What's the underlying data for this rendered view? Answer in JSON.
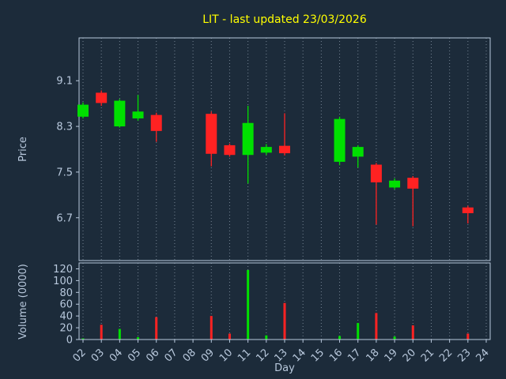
{
  "title": "LIT - last updated 23/03/2026",
  "colors": {
    "background": "#1c2b3a",
    "axis": "#b8c8dc",
    "title": "#ffff00",
    "grid": "#93a1b1",
    "up": "#00e000",
    "down": "#ff2222"
  },
  "chart_data": {
    "type": "candlestick",
    "title": "LIT - last updated 23/03/2026",
    "xlabel": "Day",
    "price_ylabel": "Price",
    "volume_ylabel": "Volume (0000)",
    "x_ticks": [
      2,
      3,
      4,
      5,
      6,
      7,
      8,
      9,
      10,
      11,
      12,
      13,
      14,
      15,
      16,
      17,
      18,
      19,
      20,
      21,
      22,
      23,
      24
    ],
    "price_yticks": [
      6.7,
      7.5,
      8.3,
      9.1
    ],
    "price_ylim": [
      5.95,
      9.85
    ],
    "volume_yticks": [
      0,
      20,
      40,
      60,
      80,
      100,
      120
    ],
    "volume_ylim": [
      0,
      130
    ],
    "legend": "none",
    "grid": "vertical-dotted",
    "candles": [
      {
        "day": 2,
        "open": 8.47,
        "high": 8.72,
        "low": 8.44,
        "close": 8.68,
        "volume": 2
      },
      {
        "day": 3,
        "open": 8.89,
        "high": 8.93,
        "low": 8.66,
        "close": 8.71,
        "volume": 25
      },
      {
        "day": 4,
        "open": 8.3,
        "high": 8.78,
        "low": 8.28,
        "close": 8.75,
        "volume": 18
      },
      {
        "day": 5,
        "open": 8.44,
        "high": 8.85,
        "low": 8.4,
        "close": 8.56,
        "volume": 4
      },
      {
        "day": 6,
        "open": 8.5,
        "high": 8.54,
        "low": 8.03,
        "close": 8.22,
        "volume": 38
      },
      {
        "day": 9,
        "open": 8.52,
        "high": 8.56,
        "low": 7.6,
        "close": 7.82,
        "volume": 40
      },
      {
        "day": 10,
        "open": 7.97,
        "high": 8.0,
        "low": 7.77,
        "close": 7.8,
        "volume": 10
      },
      {
        "day": 11,
        "open": 7.8,
        "high": 8.66,
        "low": 7.3,
        "close": 8.36,
        "volume": 118
      },
      {
        "day": 12,
        "open": 7.84,
        "high": 7.99,
        "low": 7.8,
        "close": 7.94,
        "volume": 7
      },
      {
        "day": 13,
        "open": 7.96,
        "high": 8.53,
        "low": 7.79,
        "close": 7.83,
        "volume": 62
      },
      {
        "day": 16,
        "open": 7.68,
        "high": 8.47,
        "low": 7.62,
        "close": 8.43,
        "volume": 6
      },
      {
        "day": 17,
        "open": 7.77,
        "high": 7.97,
        "low": 7.58,
        "close": 7.94,
        "volume": 28
      },
      {
        "day": 18,
        "open": 7.63,
        "high": 7.66,
        "low": 6.58,
        "close": 7.32,
        "volume": 45
      },
      {
        "day": 19,
        "open": 7.23,
        "high": 7.39,
        "low": 7.2,
        "close": 7.35,
        "volume": 5
      },
      {
        "day": 20,
        "open": 7.4,
        "high": 7.43,
        "low": 6.55,
        "close": 7.21,
        "volume": 24
      },
      {
        "day": 23,
        "open": 6.88,
        "high": 6.91,
        "low": 6.6,
        "close": 6.78,
        "volume": 10
      }
    ]
  }
}
